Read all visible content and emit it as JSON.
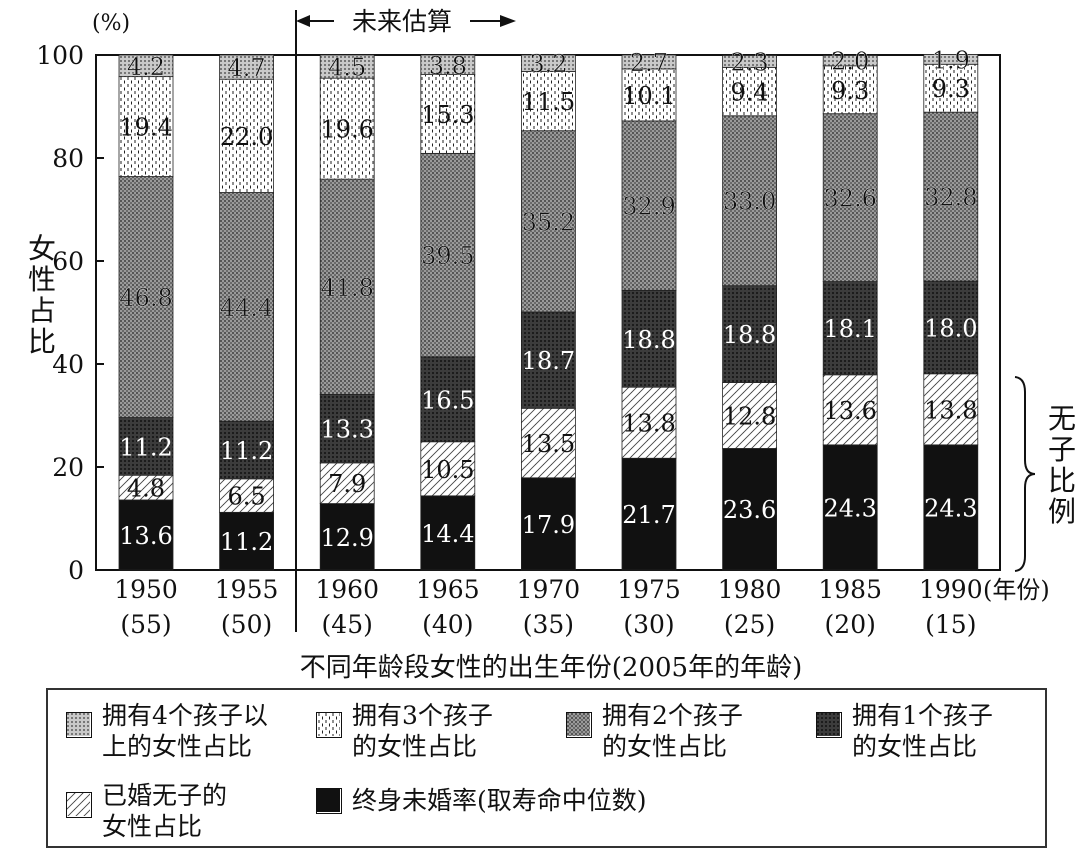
{
  "chart_data": {
    "type": "bar",
    "stacked": true,
    "y_unit": "(%)",
    "ylabel": "女性占比",
    "ylim": [
      0,
      100
    ],
    "yticks": [
      0,
      20,
      40,
      60,
      80,
      100
    ],
    "xlabel": "不同年龄段女性的出生年份(2005年的年龄)",
    "x_unit": "(年份)",
    "categories": [
      "1950",
      "1955",
      "1960",
      "1965",
      "1970",
      "1975",
      "1980",
      "1985",
      "1990"
    ],
    "ages": [
      "(55)",
      "(50)",
      "(45)",
      "(40)",
      "(35)",
      "(30)",
      "(25)",
      "(20)",
      "(15)"
    ],
    "projection_label": "未来估算",
    "bracket_label": "无子比例",
    "series": [
      {
        "key": "lifetime_unmarried",
        "name": "终身未婚率(取寿命中位数)",
        "color": "#111111",
        "values": [
          13.6,
          11.2,
          12.9,
          14.4,
          17.9,
          21.7,
          23.6,
          24.3,
          24.3
        ]
      },
      {
        "key": "married_no_child",
        "name": "已婚无子的\n女性占比",
        "color": "#ffffff",
        "values": [
          4.8,
          6.5,
          7.9,
          10.5,
          13.5,
          13.8,
          12.8,
          13.6,
          13.8
        ]
      },
      {
        "key": "one_child",
        "name": "拥有1个孩子\n的女性占比",
        "color": "#3a3a3a",
        "values": [
          11.2,
          11.2,
          13.3,
          16.5,
          18.7,
          18.8,
          18.8,
          18.1,
          18.0
        ]
      },
      {
        "key": "two_children",
        "name": "拥有2个孩子\n的女性占比",
        "color": "#8a8a8a",
        "values": [
          46.8,
          44.4,
          41.8,
          39.5,
          35.2,
          32.9,
          33.0,
          32.6,
          32.8
        ]
      },
      {
        "key": "three_children",
        "name": "拥有3个孩子\n的女性占比",
        "color": "#ffffff",
        "values": [
          19.4,
          22.0,
          19.6,
          15.3,
          11.5,
          10.1,
          9.4,
          9.3,
          9.3
        ]
      },
      {
        "key": "four_plus",
        "name": "拥有4个孩子以\n上的女性占比",
        "color": "#b5b5b5",
        "values": [
          4.2,
          4.7,
          4.5,
          3.8,
          3.2,
          2.7,
          2.3,
          2.0,
          1.9
        ]
      }
    ],
    "legend_order": [
      "four_plus",
      "three_children",
      "two_children",
      "one_child",
      "married_no_child",
      "lifetime_unmarried"
    ]
  }
}
